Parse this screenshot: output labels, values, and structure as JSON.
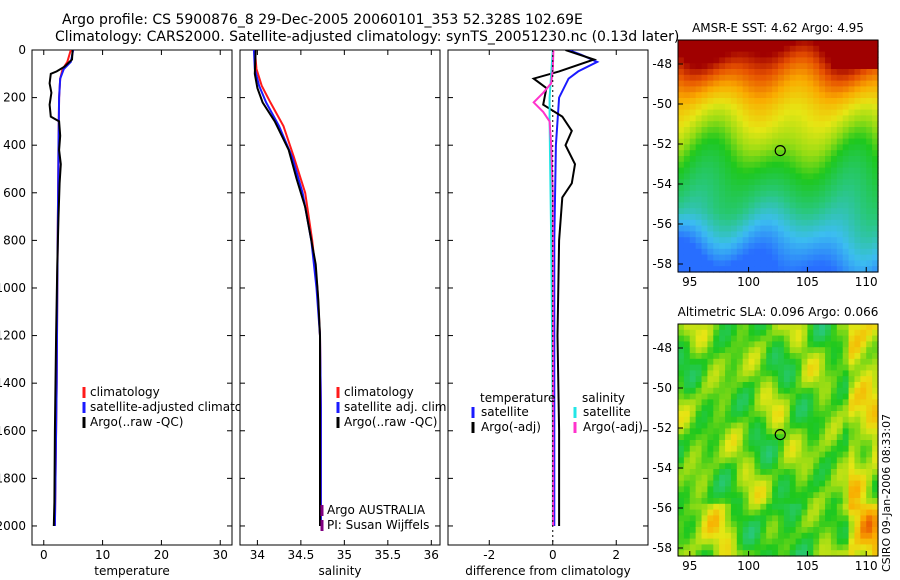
{
  "header": {
    "line1": "Argo profile: CS 5900876_8 29-Dec-2005 20060101_353 52.328S 102.69E",
    "line2": "Climatology: CARS2000. Satellite-adjusted climatology: synTS_20051230.nc (0.13d later)"
  },
  "side_label": "CSIRO 09-Jan-2006 08:33:07",
  "colors": {
    "climatology": "#ff1a1a",
    "satellite": "#1a1aff",
    "argo": "#000000",
    "sat_salinity": "#22e6e6",
    "argo_adj_sal": "#ff33cc"
  },
  "chart_data": [
    {
      "type": "line",
      "id": "temperature",
      "xlabel": "temperature",
      "ylabel": "",
      "xlim": [
        -2,
        32
      ],
      "ylim": [
        2080,
        0
      ],
      "xticks": [
        0,
        10,
        20,
        30
      ],
      "xtick_labels": [
        "0",
        "10",
        "20",
        "30"
      ],
      "yticks": [
        0,
        200,
        400,
        600,
        800,
        1000,
        1200,
        1400,
        1600,
        1800,
        2000
      ],
      "ytick_labels": [
        "0",
        "200",
        "400",
        "600",
        "800",
        "1000",
        "1200",
        "1400",
        "1600",
        "1800",
        "2000"
      ],
      "legend": [
        "climatology",
        "satellite-adjusted climatology",
        "Argo(..raw -QC)"
      ],
      "series": [
        {
          "name": "climatology",
          "color": "#ff1a1a",
          "points": [
            [
              4.6,
              0
            ],
            [
              4.0,
              50
            ],
            [
              3.2,
              80
            ],
            [
              2.8,
              120
            ],
            [
              2.6,
              200
            ],
            [
              2.5,
              400
            ],
            [
              2.4,
              700
            ],
            [
              2.3,
              1000
            ],
            [
              2.2,
              1400
            ],
            [
              2.0,
              1800
            ],
            [
              1.9,
              2000
            ]
          ]
        },
        {
          "name": "satellite-adjusted climatology",
          "color": "#1a1aff",
          "points": [
            [
              5.0,
              0
            ],
            [
              4.6,
              50
            ],
            [
              3.4,
              80
            ],
            [
              2.8,
              120
            ],
            [
              2.6,
              200
            ],
            [
              2.5,
              400
            ],
            [
              2.4,
              700
            ],
            [
              2.3,
              1000
            ],
            [
              2.2,
              1400
            ],
            [
              2.0,
              1800
            ],
            [
              1.9,
              2000
            ]
          ]
        },
        {
          "name": "Argo(..raw -QC)",
          "color": "#000000",
          "points": [
            [
              4.9,
              0
            ],
            [
              4.8,
              40
            ],
            [
              3.5,
              70
            ],
            [
              2.2,
              90
            ],
            [
              1.2,
              100
            ],
            [
              1.0,
              140
            ],
            [
              1.3,
              180
            ],
            [
              1.0,
              230
            ],
            [
              1.2,
              280
            ],
            [
              2.6,
              300
            ],
            [
              2.8,
              360
            ],
            [
              2.6,
              420
            ],
            [
              2.9,
              480
            ],
            [
              2.7,
              560
            ],
            [
              2.5,
              700
            ],
            [
              2.3,
              900
            ],
            [
              2.1,
              1200
            ],
            [
              1.9,
              1600
            ],
            [
              1.8,
              1900
            ],
            [
              1.7,
              2000
            ]
          ]
        }
      ]
    },
    {
      "type": "line",
      "id": "salinity",
      "xlabel": "salinity",
      "ylabel": "",
      "xlim": [
        33.8,
        36.1
      ],
      "ylim": [
        2080,
        0
      ],
      "xticks": [
        34,
        34.5,
        35,
        35.5,
        36
      ],
      "xtick_labels": [
        "34",
        "34.5",
        "35",
        "35.5",
        "36"
      ],
      "yticks": [
        0,
        200,
        400,
        600,
        800,
        1000,
        1200,
        1400,
        1600,
        1800,
        2000
      ],
      "legend": [
        "climatology",
        "satellite adj. clim.",
        "Argo(..raw -QC)"
      ],
      "annotation": [
        "Argo AUSTRALIA",
        "PI: Susan Wijffels"
      ],
      "series": [
        {
          "name": "climatology",
          "color": "#ff1a1a",
          "points": [
            [
              33.97,
              0
            ],
            [
              33.99,
              80
            ],
            [
              34.05,
              150
            ],
            [
              34.15,
              220
            ],
            [
              34.3,
              320
            ],
            [
              34.42,
              450
            ],
            [
              34.55,
              600
            ],
            [
              34.63,
              800
            ],
            [
              34.69,
              1000
            ],
            [
              34.72,
              1200
            ],
            [
              34.73,
              1500
            ],
            [
              34.73,
              2000
            ]
          ]
        },
        {
          "name": "satellite adj. clim.",
          "color": "#1a1aff",
          "points": [
            [
              33.96,
              0
            ],
            [
              33.97,
              80
            ],
            [
              34.02,
              150
            ],
            [
              34.1,
              220
            ],
            [
              34.25,
              320
            ],
            [
              34.4,
              450
            ],
            [
              34.52,
              600
            ],
            [
              34.62,
              800
            ],
            [
              34.68,
              1000
            ],
            [
              34.72,
              1200
            ],
            [
              34.73,
              1500
            ],
            [
              34.73,
              2000
            ]
          ]
        },
        {
          "name": "Argo(..raw -QC)",
          "color": "#000000",
          "points": [
            [
              33.98,
              0
            ],
            [
              33.97,
              100
            ],
            [
              34.0,
              160
            ],
            [
              34.06,
              220
            ],
            [
              34.2,
              300
            ],
            [
              34.36,
              420
            ],
            [
              34.45,
              540
            ],
            [
              34.55,
              660
            ],
            [
              34.6,
              760
            ],
            [
              34.67,
              900
            ],
            [
              34.7,
              1050
            ],
            [
              34.72,
              1200
            ],
            [
              34.72,
              1500
            ],
            [
              34.72,
              2000
            ]
          ]
        }
      ]
    },
    {
      "type": "line",
      "id": "difference",
      "xlabel": "difference from climatology",
      "ylabel": "",
      "xlim": [
        -3.3,
        3.0
      ],
      "ylim": [
        2080,
        0
      ],
      "xticks": [
        -2,
        0,
        2
      ],
      "xtick_labels": [
        "-2",
        "0",
        "2"
      ],
      "yticks": [
        0,
        200,
        400,
        600,
        800,
        1000,
        1200,
        1400,
        1600,
        1800,
        2000
      ],
      "legend_left_title": "temperature",
      "legend_right_title": "salinity",
      "legend": [
        "satellite",
        "Argo(-adj)",
        "satellite",
        "Argo(-adj)"
      ],
      "series": [
        {
          "name": "temperature satellite",
          "color": "#1a1aff",
          "points": [
            [
              0.5,
              0
            ],
            [
              0.9,
              20
            ],
            [
              1.4,
              50
            ],
            [
              0.8,
              90
            ],
            [
              0.5,
              120
            ],
            [
              0.2,
              200
            ],
            [
              0.1,
              400
            ],
            [
              0.05,
              800
            ],
            [
              0.05,
              1400
            ],
            [
              0.05,
              2000
            ]
          ]
        },
        {
          "name": "temperature Argo(-adj)",
          "color": "#000000",
          "points": [
            [
              0.4,
              0
            ],
            [
              1.3,
              40
            ],
            [
              0.2,
              90
            ],
            [
              -0.6,
              120
            ],
            [
              -0.2,
              160
            ],
            [
              -0.3,
              230
            ],
            [
              0.3,
              280
            ],
            [
              0.6,
              340
            ],
            [
              0.4,
              400
            ],
            [
              0.7,
              480
            ],
            [
              0.6,
              560
            ],
            [
              0.3,
              620
            ],
            [
              0.2,
              800
            ],
            [
              0.15,
              1200
            ],
            [
              0.2,
              1600
            ],
            [
              0.2,
              2000
            ]
          ]
        },
        {
          "name": "salinity satellite",
          "color": "#22e6e6",
          "points": [
            [
              0,
              0
            ],
            [
              -0.05,
              100
            ],
            [
              -0.1,
              200
            ],
            [
              -0.1,
              300
            ],
            [
              -0.08,
              500
            ],
            [
              -0.05,
              800
            ],
            [
              -0.02,
              1200
            ],
            [
              0,
              1600
            ],
            [
              0,
              2000
            ]
          ]
        },
        {
          "name": "salinity Argo(-adj)",
          "color": "#ff33cc",
          "points": [
            [
              0.02,
              0
            ],
            [
              0,
              80
            ],
            [
              -0.05,
              140
            ],
            [
              -0.3,
              180
            ],
            [
              -0.6,
              220
            ],
            [
              -0.3,
              260
            ],
            [
              -0.1,
              300
            ],
            [
              -0.05,
              400
            ],
            [
              0,
              600
            ],
            [
              0.01,
              1000
            ],
            [
              0.01,
              2000
            ]
          ]
        }
      ]
    },
    {
      "type": "heatmap",
      "id": "sst",
      "title": "AMSR-E SST: 4.62 Argo: 4.95",
      "xlim": [
        94,
        111
      ],
      "ylim": [
        -58.4,
        -46.8
      ],
      "xticks": [
        95,
        100,
        105,
        110
      ],
      "xtick_labels": [
        "95",
        "100",
        "105",
        "110"
      ],
      "yticks": [
        -48,
        -50,
        -52,
        -54,
        -56,
        -58
      ],
      "ytick_labels": [
        "-48",
        "-50",
        "-52",
        "-54",
        "-56",
        "-58"
      ],
      "marker": [
        102.69,
        -52.33
      ]
    },
    {
      "type": "heatmap",
      "id": "sla",
      "title": "Altimetric SLA: 0.096 Argo: 0.066",
      "xlim": [
        94,
        111
      ],
      "ylim": [
        -58.4,
        -46.8
      ],
      "xticks": [
        95,
        100,
        105,
        110
      ],
      "xtick_labels": [
        "95",
        "100",
        "105",
        "110"
      ],
      "yticks": [
        -48,
        -50,
        -52,
        -54,
        -56,
        -58
      ],
      "ytick_labels": [
        "-48",
        "-50",
        "-52",
        "-54",
        "-56",
        "-58"
      ],
      "marker": [
        102.69,
        -52.33
      ]
    }
  ]
}
